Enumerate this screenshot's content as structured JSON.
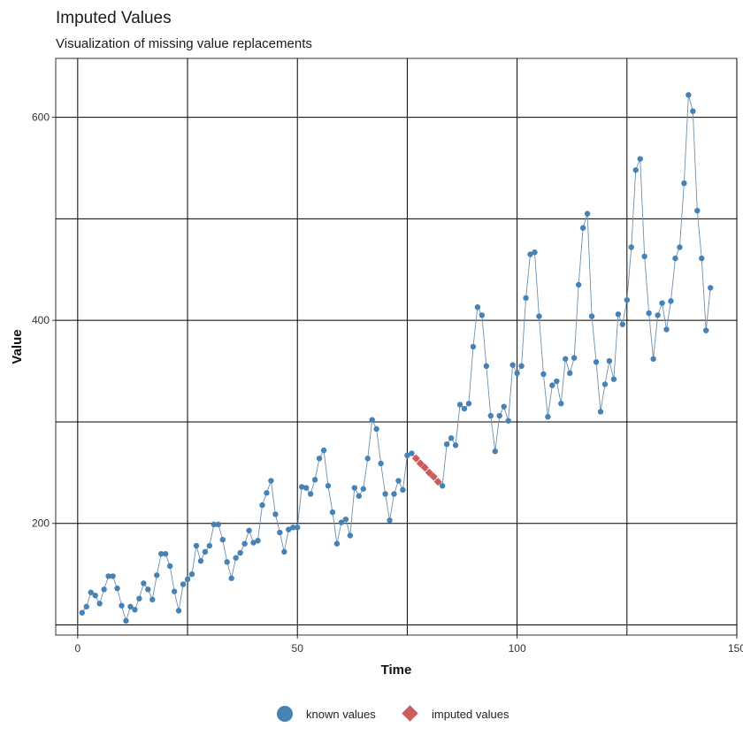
{
  "chart_data": {
    "type": "line",
    "title": "Imputed Values",
    "subtitle": "Visualization of missing value replacements",
    "xlabel": "Time",
    "ylabel": "Value",
    "xlim": [
      -5,
      150
    ],
    "ylim": [
      90,
      658
    ],
    "x_ticks": [
      0,
      50,
      100,
      150
    ],
    "y_ticks": [
      200,
      400,
      600
    ],
    "x_grid": [
      0,
      25,
      50,
      75,
      100,
      125,
      150
    ],
    "y_grid": [
      100,
      200,
      300,
      400,
      500,
      600
    ],
    "grid": true,
    "legend_position": "bottom",
    "series": [
      {
        "name": "known values",
        "color": "#4682b4",
        "marker": "circle",
        "points": [
          [
            1,
            112
          ],
          [
            2,
            118
          ],
          [
            3,
            132
          ],
          [
            4,
            129
          ],
          [
            5,
            121
          ],
          [
            6,
            135
          ],
          [
            7,
            148
          ],
          [
            8,
            148
          ],
          [
            9,
            136
          ],
          [
            10,
            119
          ],
          [
            11,
            104
          ],
          [
            12,
            118
          ],
          [
            13,
            115
          ],
          [
            14,
            126
          ],
          [
            15,
            141
          ],
          [
            16,
            135
          ],
          [
            17,
            125
          ],
          [
            18,
            149
          ],
          [
            19,
            170
          ],
          [
            20,
            170
          ],
          [
            21,
            158
          ],
          [
            22,
            133
          ],
          [
            23,
            114
          ],
          [
            24,
            140
          ],
          [
            25,
            145
          ],
          [
            26,
            150
          ],
          [
            27,
            178
          ],
          [
            28,
            163
          ],
          [
            29,
            172
          ],
          [
            30,
            178
          ],
          [
            31,
            199
          ],
          [
            32,
            199
          ],
          [
            33,
            184
          ],
          [
            34,
            162
          ],
          [
            35,
            146
          ],
          [
            36,
            166
          ],
          [
            37,
            171
          ],
          [
            38,
            180
          ],
          [
            39,
            193
          ],
          [
            40,
            181
          ],
          [
            41,
            183
          ],
          [
            42,
            218
          ],
          [
            43,
            230
          ],
          [
            44,
            242
          ],
          [
            45,
            209
          ],
          [
            46,
            191
          ],
          [
            47,
            172
          ],
          [
            48,
            194
          ],
          [
            49,
            196
          ],
          [
            50,
            196
          ],
          [
            51,
            236
          ],
          [
            52,
            235
          ],
          [
            53,
            229
          ],
          [
            54,
            243
          ],
          [
            55,
            264
          ],
          [
            56,
            272
          ],
          [
            57,
            237
          ],
          [
            58,
            211
          ],
          [
            59,
            180
          ],
          [
            60,
            201
          ],
          [
            61,
            204
          ],
          [
            62,
            188
          ],
          [
            63,
            235
          ],
          [
            64,
            227
          ],
          [
            65,
            234
          ],
          [
            66,
            264
          ],
          [
            67,
            302
          ],
          [
            68,
            293
          ],
          [
            69,
            259
          ],
          [
            70,
            229
          ],
          [
            71,
            203
          ],
          [
            72,
            229
          ],
          [
            73,
            242
          ],
          [
            74,
            233
          ],
          [
            75,
            267
          ],
          [
            76,
            269
          ],
          [
            83,
            237
          ],
          [
            84,
            278
          ],
          [
            85,
            284
          ],
          [
            86,
            277
          ],
          [
            87,
            317
          ],
          [
            88,
            313
          ],
          [
            89,
            318
          ],
          [
            90,
            374
          ],
          [
            91,
            413
          ],
          [
            92,
            405
          ],
          [
            93,
            355
          ],
          [
            94,
            306
          ],
          [
            95,
            271
          ],
          [
            96,
            306
          ],
          [
            97,
            315
          ],
          [
            98,
            301
          ],
          [
            99,
            356
          ],
          [
            100,
            348
          ],
          [
            101,
            355
          ],
          [
            102,
            422
          ],
          [
            103,
            465
          ],
          [
            104,
            467
          ],
          [
            105,
            404
          ],
          [
            106,
            347
          ],
          [
            107,
            305
          ],
          [
            108,
            336
          ],
          [
            109,
            340
          ],
          [
            110,
            318
          ],
          [
            111,
            362
          ],
          [
            112,
            348
          ],
          [
            113,
            363
          ],
          [
            114,
            435
          ],
          [
            115,
            491
          ],
          [
            116,
            505
          ],
          [
            117,
            404
          ],
          [
            118,
            359
          ],
          [
            119,
            310
          ],
          [
            120,
            337
          ],
          [
            121,
            360
          ],
          [
            122,
            342
          ],
          [
            123,
            406
          ],
          [
            124,
            396
          ],
          [
            125,
            420
          ],
          [
            126,
            472
          ],
          [
            127,
            548
          ],
          [
            128,
            559
          ],
          [
            129,
            463
          ],
          [
            130,
            407
          ],
          [
            131,
            362
          ],
          [
            132,
            405
          ],
          [
            133,
            417
          ],
          [
            134,
            391
          ],
          [
            135,
            419
          ],
          [
            136,
            461
          ],
          [
            137,
            472
          ],
          [
            138,
            535
          ],
          [
            139,
            622
          ],
          [
            140,
            606
          ],
          [
            141,
            508
          ],
          [
            142,
            461
          ],
          [
            143,
            390
          ],
          [
            144,
            432
          ]
        ]
      },
      {
        "name": "imputed values",
        "color": "#cd5c5c",
        "marker": "diamond",
        "points": [
          [
            77,
            264
          ],
          [
            78,
            259
          ],
          [
            79,
            255
          ],
          [
            80,
            250
          ],
          [
            81,
            246
          ],
          [
            82,
            241
          ]
        ]
      }
    ]
  }
}
